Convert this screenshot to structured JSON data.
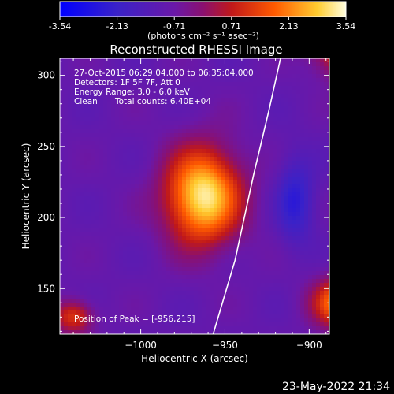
{
  "chart_data": {
    "type": "heatmap",
    "title": "Reconstructed RHESSI Image",
    "xlabel": "Heliocentric X (arcsec)",
    "ylabel": "Heliocentric Y (arcsec)",
    "xlim": [
      -1048,
      -888
    ],
    "ylim": [
      118,
      312
    ],
    "xticks": [
      -1000,
      -950,
      -900
    ],
    "yticks": [
      150,
      200,
      250,
      300
    ],
    "colorbar": {
      "ticks": [
        "-3.54",
        "-2.13",
        "-0.71",
        "0.71",
        "2.13",
        "3.54"
      ],
      "range": [
        -3.54,
        3.54
      ],
      "label": "(photons cm⁻² s⁻¹ asec⁻²)"
    },
    "colors": [
      "#0000ff",
      "#5a2ca8",
      "#4a1ea8",
      "#7a1aa0",
      "#c0181a",
      "#ff6a00",
      "#ffd23c",
      "#ffffe0"
    ],
    "annotations": {
      "time": "27-Oct-2015 06:29:04.000 to 06:35:04.000",
      "detectors": "Detectors: 1F 5F 7F, Att 0",
      "energy": "Energy Range: 3.0 - 6.0 keV",
      "clean": "Clean",
      "counts": "Total counts: 6.40E+04",
      "peak": "Position of Peak = [-956,215]"
    },
    "features": [
      {
        "kind": "peak",
        "x": -956,
        "y": 215,
        "value": 3.54
      },
      {
        "kind": "blob",
        "x": -963,
        "y": 215,
        "rx": 28,
        "ry": 42,
        "value": 3.3
      },
      {
        "kind": "blob",
        "x": -908,
        "y": 212,
        "rx": 14,
        "ry": 38,
        "value": -2.4
      },
      {
        "kind": "blob",
        "x": -875,
        "y": 320,
        "rx": 25,
        "ry": 25,
        "value": 2.6
      },
      {
        "kind": "blob",
        "x": -880,
        "y": 140,
        "rx": 22,
        "ry": 22,
        "value": 2.4
      },
      {
        "kind": "blob",
        "x": -1040,
        "y": 130,
        "rx": 15,
        "ry": 15,
        "value": 1.2
      }
    ],
    "limb_curve": [
      [
        -957,
        118
      ],
      [
        -944,
        170
      ],
      [
        -933,
        230
      ],
      [
        -924,
        275
      ],
      [
        -917,
        312
      ]
    ]
  },
  "footer": {
    "timestamp": "23-May-2022 21:34"
  }
}
